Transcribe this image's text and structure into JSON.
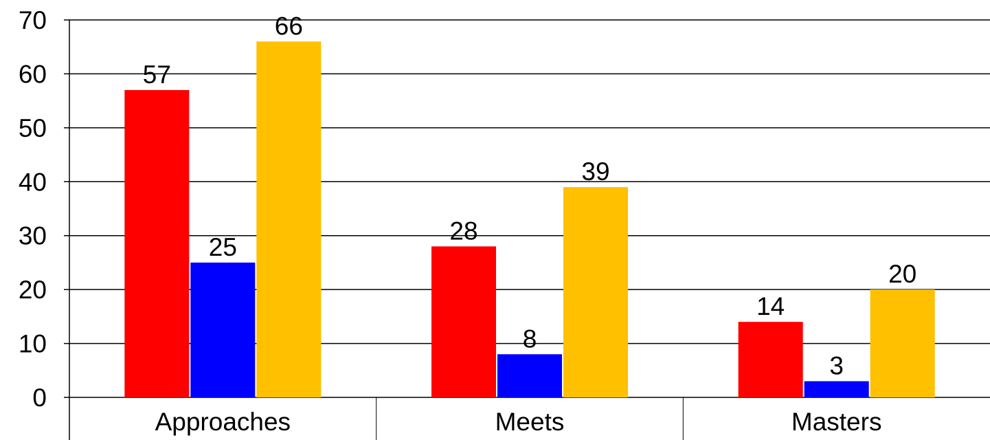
{
  "chart_data": {
    "type": "bar",
    "categories": [
      "Approaches",
      "Meets",
      "Masters"
    ],
    "series": [
      {
        "color": "#ff0000",
        "values": [
          57,
          28,
          14
        ]
      },
      {
        "color": "#0000ff",
        "values": [
          25,
          8,
          3
        ]
      },
      {
        "color": "#ffc000",
        "values": [
          66,
          39,
          20
        ]
      }
    ],
    "ylim": [
      0,
      70
    ],
    "yticks": [
      0,
      10,
      20,
      30,
      40,
      50,
      60,
      70
    ],
    "grid": true,
    "data_labels": true,
    "legend": "none"
  }
}
